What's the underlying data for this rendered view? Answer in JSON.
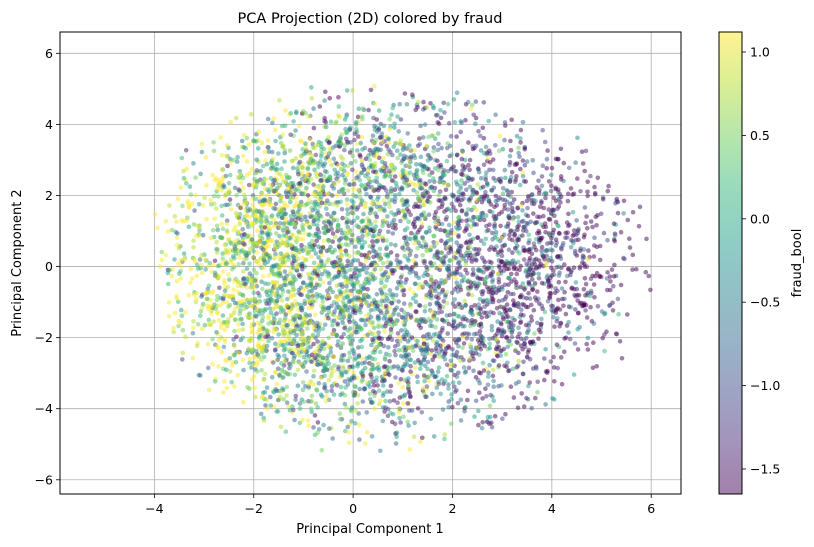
{
  "chart_data": {
    "type": "scatter",
    "title": "PCA Projection (2D) colored by fraud",
    "xlabel": "Principal Component 1",
    "ylabel": "Principal Component 2",
    "xlim": [
      -5.9,
      6.6
    ],
    "ylim": [
      -6.4,
      6.6
    ],
    "x_ticks": [
      -4,
      -2,
      0,
      2,
      4,
      6
    ],
    "y_ticks": [
      -6,
      -4,
      -2,
      0,
      2,
      4,
      6
    ],
    "x_tick_labels": [
      "−4",
      "−2",
      "0",
      "2",
      "4",
      "6"
    ],
    "y_tick_labels": [
      "−6",
      "−4",
      "−2",
      "0",
      "2",
      "4",
      "6"
    ],
    "grid": true,
    "marker_alpha": 0.5,
    "colormap": "viridis",
    "colorbar": {
      "label": "fraud_bool",
      "range": [
        -1.65,
        1.12
      ],
      "ticks": [
        1.0,
        0.5,
        0.0,
        -0.5,
        -1.0,
        -1.5
      ],
      "tick_labels": [
        "1.0",
        "0.5",
        "0.0",
        "−0.5",
        "−1.0",
        "−1.5"
      ]
    },
    "cloud_shape": {
      "x_range": [
        -5.2,
        6.0
      ],
      "y_range": [
        -5.8,
        6.1
      ],
      "center": [
        0.4,
        0.0
      ],
      "color_trend": "high values (yellow) concentrated at negative PC1, low values (purple) at positive PC1"
    },
    "colors": {
      "viridis": [
        "#440154",
        "#482878",
        "#3e4989",
        "#31688e",
        "#26828e",
        "#1f9e89",
        "#35b779",
        "#6ece58",
        "#b5de2b",
        "#fde725"
      ]
    }
  }
}
